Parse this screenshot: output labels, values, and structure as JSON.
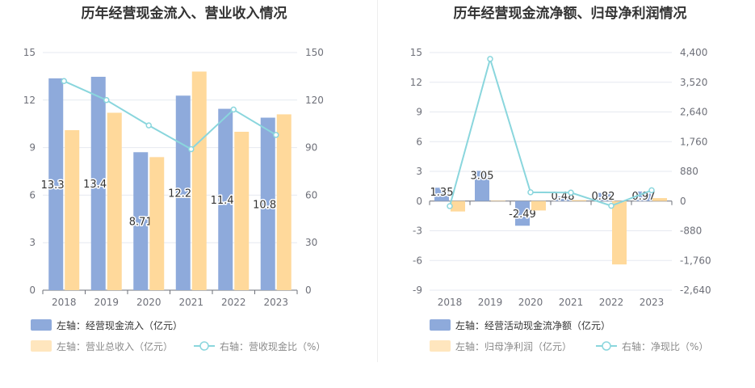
{
  "chart_data": [
    {
      "type": "bar",
      "title": "历年经营现金流入、营业收入情况",
      "categories": [
        "2018",
        "2019",
        "2020",
        "2021",
        "2022",
        "2023"
      ],
      "left_axis": {
        "min": 0,
        "max": 15,
        "ticks": [
          "0",
          "3",
          "6",
          "9",
          "12",
          "15"
        ]
      },
      "right_axis": {
        "min": 0,
        "max": 150,
        "ticks": [
          "0",
          "30",
          "60",
          "90",
          "120",
          "150"
        ]
      },
      "series": [
        {
          "name": "左轴：经营现金流入（亿元）",
          "type": "bar",
          "axis": "left",
          "color": "#8eaadb",
          "values": [
            13.37,
            13.47,
            8.71,
            12.28,
            11.45,
            10.89
          ],
          "labels": [
            "13.37",
            "13.47",
            "8.71",
            "12.28",
            "11.45",
            "10.89"
          ]
        },
        {
          "name": "左轴：营业总收入（亿元）",
          "type": "bar",
          "axis": "left",
          "color": "#ffd99b",
          "values": [
            10.1,
            11.2,
            8.4,
            13.8,
            10.0,
            11.1
          ]
        },
        {
          "name": "右轴：营收现金比（%）",
          "type": "line",
          "axis": "right",
          "color": "#8ad6dd",
          "values": [
            132,
            120,
            104,
            89,
            114,
            98
          ]
        }
      ],
      "legend_position": "bottom-left",
      "grid": true
    },
    {
      "type": "bar",
      "title": "历年经营现金流净额、归母净利润情况",
      "categories": [
        "2018",
        "2019",
        "2020",
        "2021",
        "2022",
        "2023"
      ],
      "left_axis": {
        "min": -9,
        "max": 15,
        "ticks": [
          "-9",
          "-6",
          "-3",
          "0",
          "3",
          "6",
          "9",
          "12",
          "15"
        ]
      },
      "right_axis": {
        "min": -2640,
        "max": 4400,
        "ticks": [
          "-2,640",
          "-1,760",
          "-880",
          "0",
          "880",
          "1,760",
          "2,640",
          "3,520",
          "4,400"
        ]
      },
      "series": [
        {
          "name": "左轴：经营活动现金流净额（亿元）",
          "type": "bar",
          "axis": "left",
          "color": "#8eaadb",
          "values": [
            1.35,
            3.05,
            -2.49,
            0.48,
            0.82,
            0.97
          ],
          "labels": [
            "1.35",
            "3.05",
            "-2.49",
            "0.48",
            "0.82",
            "0.97"
          ]
        },
        {
          "name": "左轴：归母净利润（亿元）",
          "type": "bar",
          "axis": "left",
          "color": "#ffd99b",
          "values": [
            -1.05,
            0.05,
            -0.95,
            0.1,
            -6.4,
            0.3
          ]
        },
        {
          "name": "右轴：净现比（%）",
          "type": "line",
          "axis": "right",
          "color": "#8ad6dd",
          "values": [
            -150,
            4210,
            260,
            250,
            -140,
            320
          ]
        }
      ],
      "legend_position": "bottom-left",
      "grid": true
    }
  ]
}
